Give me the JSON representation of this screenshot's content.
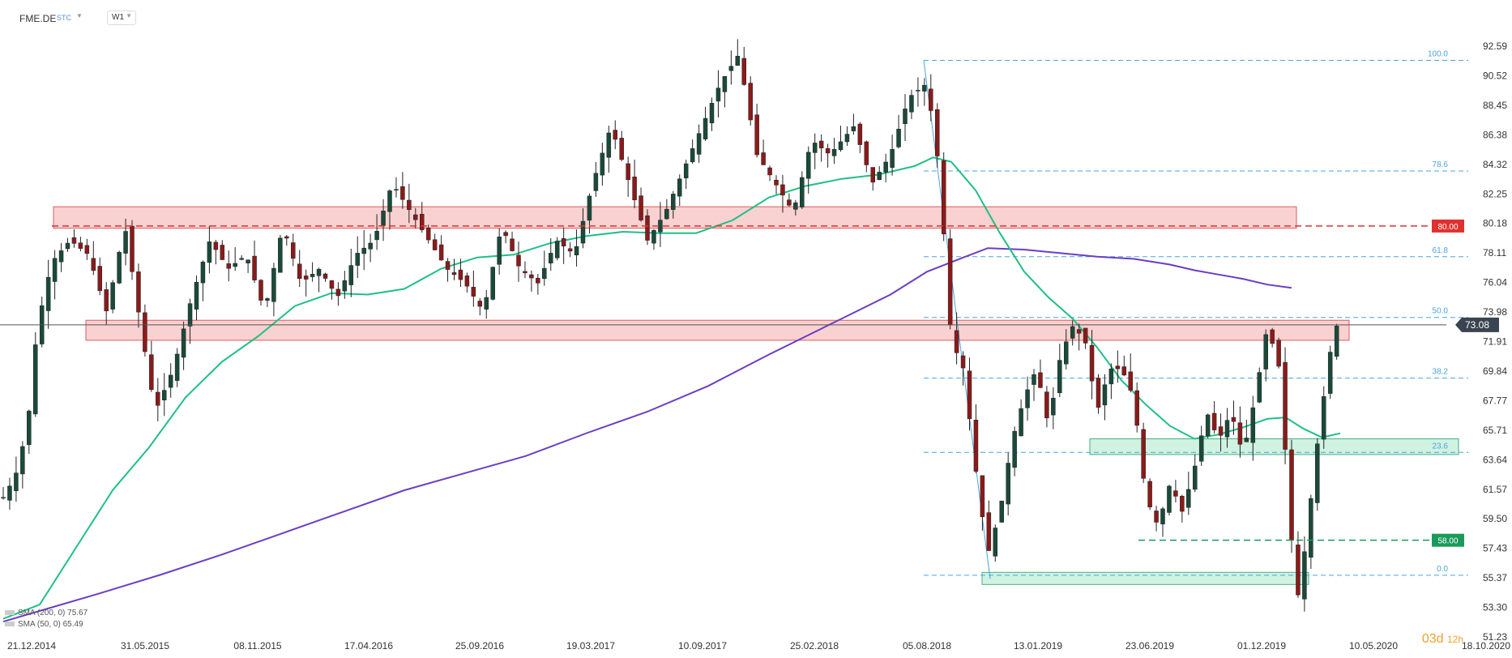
{
  "toolbar": {
    "symbol": "FME.DE",
    "market": "STC",
    "timeframe": "W1"
  },
  "legend": {
    "sma200": "SMA (200, 0) 75.67",
    "sma50": "SMA (50, 0) 65.49"
  },
  "countdown": {
    "days": "03d",
    "hours": "12h"
  },
  "colors": {
    "up": "#26a69a",
    "down": "#8b1a1a",
    "candle_up_body": "#1a4a3a",
    "sma50": "#1fbf85",
    "sma200": "#6a3ec6",
    "fib": "#4aa3e0",
    "resistance_fill": "#f9c9c9",
    "resistance_border": "#d84040",
    "support_fill": "#c8f0dc",
    "support_border": "#2aa070"
  },
  "chart_data": {
    "type": "candlestick",
    "title": "",
    "ylim": [
      51.23,
      93.5
    ],
    "y_ticks": [
      "92.59",
      "90.52",
      "88.45",
      "86.38",
      "84.32",
      "82.25",
      "80.18",
      "78.11",
      "76.04",
      "73.98",
      "71.91",
      "69.84",
      "67.77",
      "65.71",
      "63.64",
      "61.57",
      "59.50",
      "57.43",
      "55.37",
      "53.30",
      "51.23"
    ],
    "x_ticks": [
      "21.12.2014",
      "31.05.2015",
      "08.11.2015",
      "17.04.2016",
      "25.09.2016",
      "19.03.2017",
      "10.09.2017",
      "25.02.2018",
      "05.08.2018",
      "13.01.2019",
      "23.06.2019",
      "01.12.2019",
      "10.05.2020",
      "18.10.2020"
    ],
    "last_price": "73.08",
    "price_labels": [
      {
        "value": 80.0,
        "text": "80.00",
        "color": "#e03030"
      },
      {
        "value": 58.0,
        "text": "58.00",
        "color": "#1a9a5a"
      }
    ],
    "fibonacci": [
      {
        "level": "100.0",
        "price": 91.6
      },
      {
        "level": "78.6",
        "price": 83.85
      },
      {
        "level": "61.8",
        "price": 77.85
      },
      {
        "level": "50.0",
        "price": 73.6
      },
      {
        "level": "38.2",
        "price": 69.35
      },
      {
        "level": "23.6",
        "price": 64.15
      },
      {
        "level": "0.0",
        "price": 55.55
      }
    ],
    "zones": [
      {
        "kind": "resistance",
        "x_start": "21.11.2015",
        "x_end": "10.05.2020",
        "y_low": 79.85,
        "y_high": 81.35
      },
      {
        "kind": "resistance",
        "x_start": "31.05.2015",
        "x_end": "10.05.2020",
        "y_low": 72.0,
        "y_high": 73.4
      },
      {
        "kind": "support",
        "x_start": "13.01.2019",
        "x_end": "10.05.2020",
        "y_low": 64.0,
        "y_high": 65.1
      },
      {
        "kind": "support",
        "x_start": "18.11.2018",
        "x_end": "29.03.2020",
        "y_low": 54.9,
        "y_high": 55.75
      }
    ],
    "series": [
      {
        "name": "SMA (200, 0) 75.67",
        "kind": "sma200",
        "points": [
          [
            0,
            52.3
          ],
          [
            40,
            53.3
          ],
          [
            80,
            54.3
          ],
          [
            130,
            55.6
          ],
          [
            180,
            57.0
          ],
          [
            230,
            58.5
          ],
          [
            280,
            60.0
          ],
          [
            330,
            61.5
          ],
          [
            380,
            62.7
          ],
          [
            430,
            63.9
          ],
          [
            480,
            65.5
          ],
          [
            530,
            67.0
          ],
          [
            580,
            68.8
          ],
          [
            630,
            71.0
          ],
          [
            680,
            73.1
          ],
          [
            730,
            75.2
          ],
          [
            760,
            76.8
          ],
          [
            790,
            77.8
          ],
          [
            810,
            78.45
          ],
          [
            840,
            78.35
          ],
          [
            870,
            78.1
          ],
          [
            900,
            77.85
          ],
          [
            930,
            77.7
          ],
          [
            960,
            77.3
          ],
          [
            980,
            76.9
          ],
          [
            1000,
            76.6
          ],
          [
            1020,
            76.3
          ],
          [
            1040,
            75.9
          ],
          [
            1060,
            75.67
          ]
        ]
      },
      {
        "name": "SMA (50, 0) 65.49",
        "kind": "sma50",
        "points": [
          [
            0,
            52.5
          ],
          [
            30,
            53.5
          ],
          [
            60,
            57.5
          ],
          [
            90,
            61.5
          ],
          [
            120,
            64.5
          ],
          [
            150,
            68.0
          ],
          [
            180,
            70.5
          ],
          [
            210,
            72.3
          ],
          [
            240,
            74.4
          ],
          [
            270,
            75.3
          ],
          [
            300,
            75.2
          ],
          [
            330,
            75.6
          ],
          [
            360,
            77.0
          ],
          [
            390,
            77.8
          ],
          [
            420,
            78.0
          ],
          [
            450,
            78.8
          ],
          [
            480,
            79.3
          ],
          [
            510,
            79.6
          ],
          [
            540,
            79.5
          ],
          [
            570,
            79.5
          ],
          [
            600,
            80.4
          ],
          [
            630,
            82.0
          ],
          [
            660,
            82.8
          ],
          [
            690,
            83.3
          ],
          [
            720,
            83.6
          ],
          [
            750,
            84.2
          ],
          [
            765,
            84.8
          ],
          [
            780,
            84.5
          ],
          [
            800,
            82.5
          ],
          [
            820,
            79.5
          ],
          [
            840,
            76.8
          ],
          [
            860,
            75.0
          ],
          [
            880,
            73.5
          ],
          [
            900,
            71.5
          ],
          [
            920,
            69.2
          ],
          [
            940,
            67.5
          ],
          [
            960,
            66.0
          ],
          [
            980,
            65.1
          ],
          [
            1000,
            65.4
          ],
          [
            1020,
            65.9
          ],
          [
            1040,
            66.5
          ],
          [
            1055,
            66.6
          ],
          [
            1070,
            65.8
          ],
          [
            1085,
            65.2
          ],
          [
            1100,
            65.49
          ]
        ]
      }
    ],
    "candles_note": "weekly OHLC series; values approximated from price axis"
  }
}
